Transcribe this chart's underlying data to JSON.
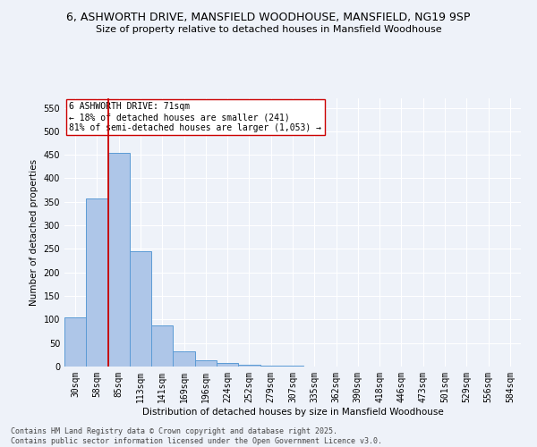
{
  "title_line1": "6, ASHWORTH DRIVE, MANSFIELD WOODHOUSE, MANSFIELD, NG19 9SP",
  "title_line2": "Size of property relative to detached houses in Mansfield Woodhouse",
  "xlabel": "Distribution of detached houses by size in Mansfield Woodhouse",
  "ylabel": "Number of detached properties",
  "bar_labels": [
    "30sqm",
    "58sqm",
    "85sqm",
    "113sqm",
    "141sqm",
    "169sqm",
    "196sqm",
    "224sqm",
    "252sqm",
    "279sqm",
    "307sqm",
    "335sqm",
    "362sqm",
    "390sqm",
    "418sqm",
    "446sqm",
    "473sqm",
    "501sqm",
    "529sqm",
    "556sqm",
    "584sqm"
  ],
  "bar_values": [
    105,
    358,
    455,
    245,
    88,
    32,
    13,
    8,
    4,
    2,
    1,
    0,
    0,
    0,
    0,
    0,
    0,
    0,
    0,
    0,
    0
  ],
  "bar_color": "#aec6e8",
  "bar_edge_color": "#5b9bd5",
  "vline_x": 1.5,
  "vline_color": "#cc0000",
  "annotation_text": "6 ASHWORTH DRIVE: 71sqm\n← 18% of detached houses are smaller (241)\n81% of semi-detached houses are larger (1,053) →",
  "annotation_box_color": "#ffffff",
  "annotation_box_edge": "#cc0000",
  "ylim": [
    0,
    570
  ],
  "yticks": [
    0,
    50,
    100,
    150,
    200,
    250,
    300,
    350,
    400,
    450,
    500,
    550
  ],
  "background_color": "#eef2f9",
  "grid_color": "#ffffff",
  "footer_text": "Contains HM Land Registry data © Crown copyright and database right 2025.\nContains public sector information licensed under the Open Government Licence v3.0.",
  "title_fontsize": 9,
  "subtitle_fontsize": 8,
  "annotation_fontsize": 7,
  "footer_fontsize": 6,
  "axis_label_fontsize": 7.5,
  "tick_fontsize": 7
}
